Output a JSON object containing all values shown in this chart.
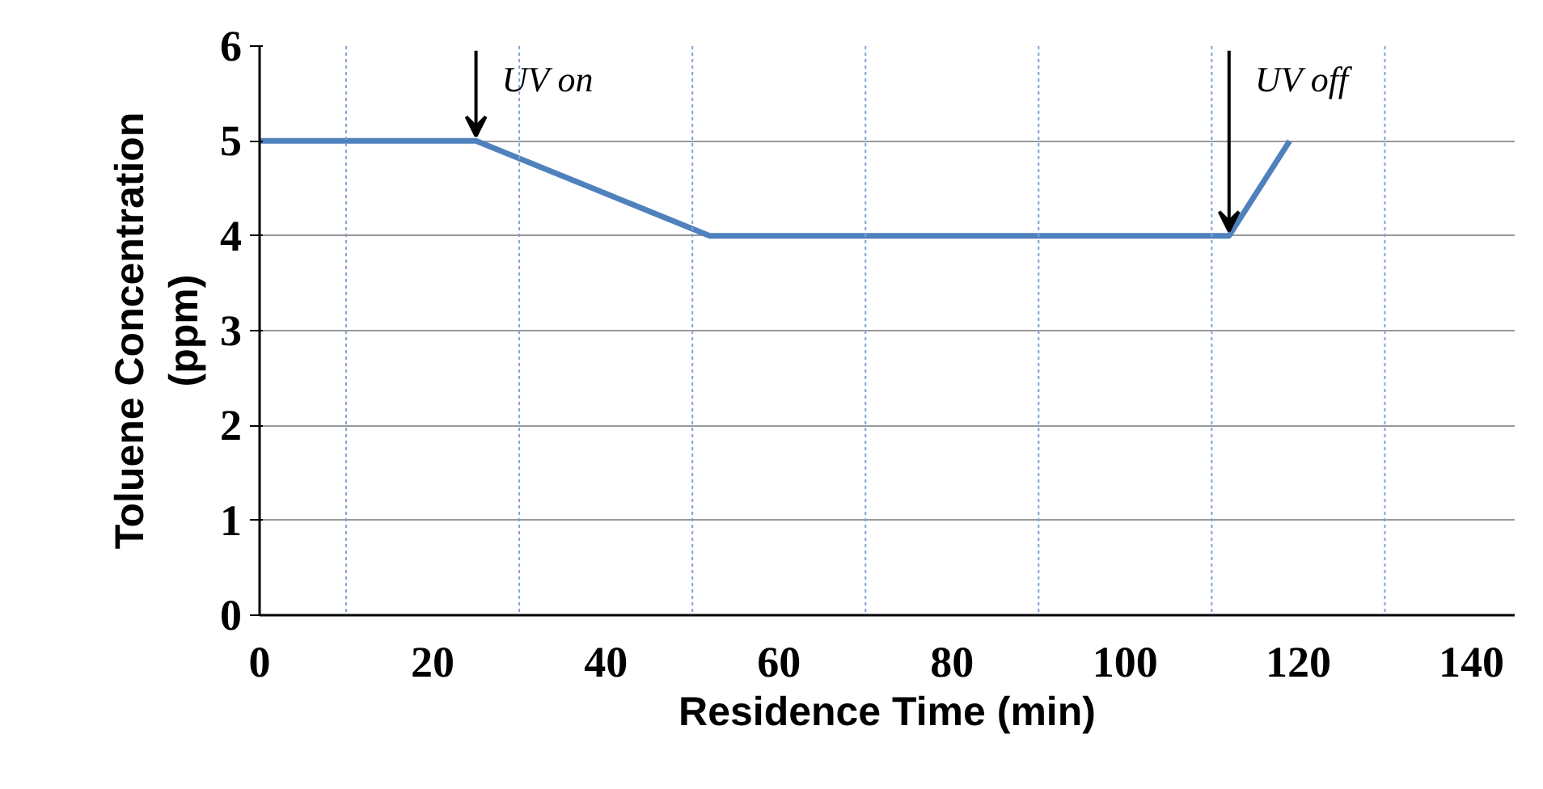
{
  "chart_data": {
    "type": "line",
    "xlabel": "Residence Time (min)",
    "ylabel": "Toluene Concentration\n(ppm)",
    "x": [
      0,
      25,
      52,
      112,
      119
    ],
    "series": [
      {
        "color": "#4f81bd",
        "values": [
          5,
          5,
          4,
          4,
          5
        ]
      }
    ],
    "xlim": [
      0,
      145
    ],
    "ylim": [
      0,
      6
    ],
    "xticks": [
      0,
      {
        "value": 10,
        "label": null
      },
      20,
      {
        "value": 30,
        "label": null
      },
      40,
      {
        "value": 50,
        "label": null
      },
      60,
      {
        "value": 70,
        "label": null
      },
      80,
      {
        "value": 90,
        "label": null
      },
      100,
      {
        "value": 110,
        "label": null
      },
      120,
      {
        "value": 130,
        "label": null
      },
      140
    ],
    "yticks": [
      0,
      1,
      2,
      3,
      4,
      5,
      6
    ],
    "grid": true,
    "marker": "none",
    "line_style": "solid",
    "annotations": [
      {
        "text": "UV on",
        "x": 25,
        "y": 5
      },
      {
        "text": "UV off",
        "x": 112,
        "y": 4
      }
    ]
  }
}
